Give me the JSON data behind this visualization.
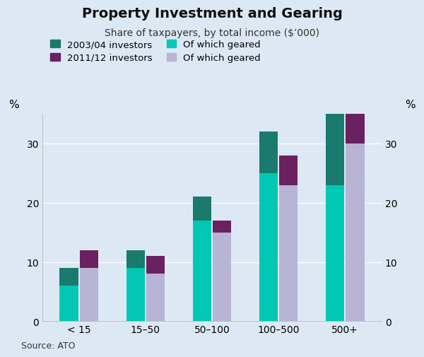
{
  "title": "Property Investment and Gearing",
  "subtitle": "Share of taxpayers, by total income ($’000)",
  "categories": [
    "< 15",
    "15–50",
    "50–100",
    "100–500",
    "500+"
  ],
  "investors_2003_total": [
    9,
    12,
    21,
    32,
    35
  ],
  "investors_2003_geared": [
    6,
    9,
    17,
    25,
    23
  ],
  "investors_2011_total": [
    12,
    11,
    17,
    28,
    37
  ],
  "investors_2011_geared": [
    9,
    8,
    15,
    23,
    30
  ],
  "color_2003_top": "#1a7a6e",
  "color_2003_geared": "#00c8b4",
  "color_2011_top": "#6b2060",
  "color_2011_geared": "#b8b4d4",
  "background_color": "#dce9f5",
  "ylim": [
    0,
    35
  ],
  "yticks": [
    0,
    10,
    20,
    30
  ],
  "ylabel": "%",
  "source": "Source: ATO",
  "legend_labels": [
    "2003/04 investors",
    "2011/12 investors",
    "Of which geared",
    "Of which geared"
  ]
}
